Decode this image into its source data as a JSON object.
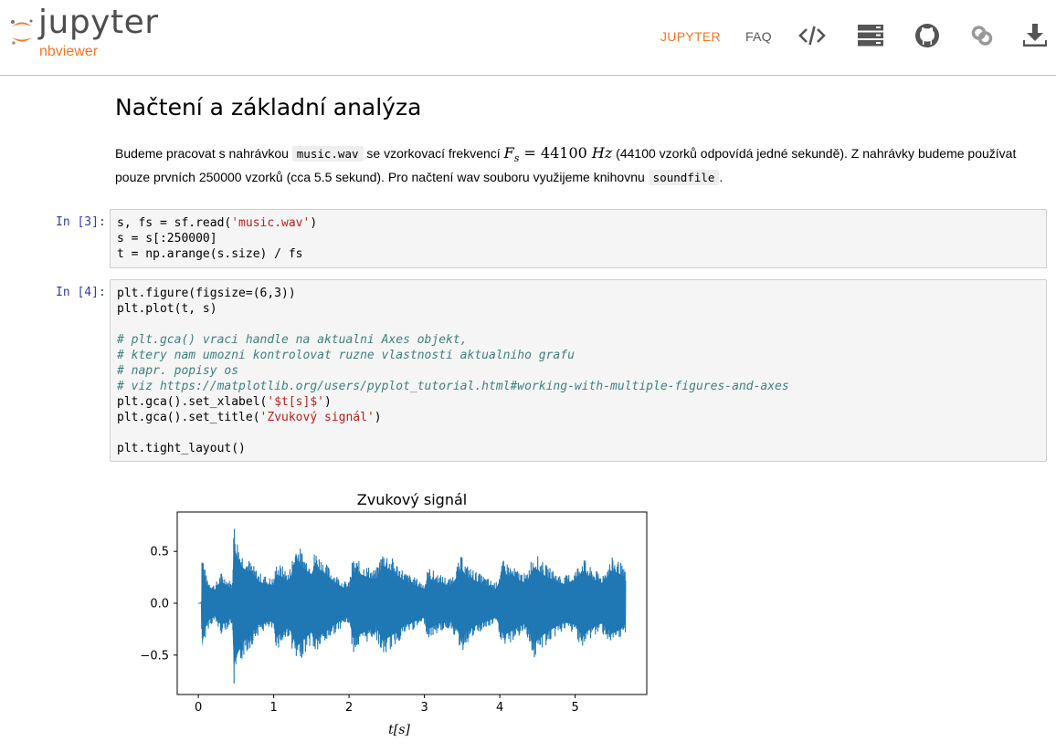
{
  "header": {
    "logo_word": "jupyter",
    "logo_sub": "nbviewer",
    "nav_jupyter": "JUPYTER",
    "nav_faq": "FAQ",
    "icons": [
      "code-icon",
      "server-icon",
      "github-icon",
      "link-icon",
      "download-icon"
    ],
    "accent": "#f37626"
  },
  "notebook": {
    "heading": "Načtení a základní analýza",
    "para": {
      "t1": "Budeme pracovat s nahrávkou ",
      "code1": "music.wav",
      "t2": " se vzorkovací frekvencí ",
      "math_var": "F",
      "math_sub": "s",
      "math_eq": " = 44100 ",
      "math_unit": "Hz",
      "t3": " (44100 vzorků odpovídá jedné sekundě). Z nahrávky budeme používat pouze prvních 250000 vzorků (cca 5.5 sekund). Pro načtení wav souboru využijeme knihovnu ",
      "code2": "soundfile",
      "t4": "."
    },
    "cell3": {
      "prompt": "In [3]:",
      "l1a": "s, fs = sf.read(",
      "l1s": "'music.wav'",
      "l1b": ")",
      "l2": "s = s[:250000]",
      "l3": "t = np.arange(s.size) / fs"
    },
    "cell4": {
      "prompt": "In [4]:",
      "l1": "plt.figure(figsize=(6,3))",
      "l2": "plt.plot(t, s)",
      "c1": "# plt.gca() vraci handle na aktualni Axes objekt,",
      "c2": "# ktery nam umozni kontrolovat ruzne vlastnosti aktualniho grafu",
      "c3": "# napr. popisy os",
      "c4": "# viz https://matplotlib.org/users/pyplot_tutorial.html#working-with-multiple-figures-and-axes",
      "l3a": "plt.gca().set_xlabel(",
      "l3s": "'$t[s]$'",
      "l3b": ")",
      "l4a": "plt.gca().set_title(",
      "l4s": "'Zvukový signál'",
      "l4b": ")",
      "l5": "plt.tight_layout()"
    }
  },
  "chart_data": {
    "type": "line",
    "title": "Zvukový signál",
    "xlabel": "t[s]",
    "ylabel": "",
    "xlim": [
      -0.28,
      5.95
    ],
    "ylim": [
      -0.88,
      0.88
    ],
    "xticks": [
      0,
      1,
      2,
      3,
      4,
      5
    ],
    "xtick_labels": [
      "0",
      "1",
      "2",
      "3",
      "4",
      "5"
    ],
    "yticks": [
      -0.5,
      0.0,
      0.5
    ],
    "ytick_labels": [
      "−0.5",
      "0.0",
      "0.5"
    ],
    "grid": false,
    "color": "#1f77b4",
    "series": [
      {
        "x": [
          0.0,
          0.04,
          0.05,
          0.07,
          0.1,
          0.15,
          0.22,
          0.3,
          0.38,
          0.45,
          0.47,
          0.52,
          0.58,
          0.7,
          0.8,
          0.95,
          1.0,
          1.04,
          1.12,
          1.2,
          1.3,
          1.4,
          1.5,
          1.55,
          1.7,
          1.8,
          1.92,
          2.0,
          2.05,
          2.2,
          2.35,
          2.45,
          2.6,
          2.75,
          2.9,
          3.0,
          3.05,
          3.2,
          3.35,
          3.5,
          3.55,
          3.7,
          3.85,
          3.95,
          4.05,
          4.2,
          4.35,
          4.45,
          4.6,
          4.75,
          4.85,
          5.0,
          5.1,
          5.2,
          5.35,
          5.5,
          5.6,
          5.67
        ],
        "upper": [
          0.0,
          0.0,
          0.54,
          0.42,
          0.28,
          0.22,
          0.18,
          0.3,
          0.25,
          0.2,
          0.8,
          0.62,
          0.5,
          0.4,
          0.3,
          0.25,
          0.25,
          0.4,
          0.36,
          0.3,
          0.6,
          0.48,
          0.4,
          0.52,
          0.38,
          0.3,
          0.22,
          0.2,
          0.44,
          0.38,
          0.32,
          0.52,
          0.42,
          0.3,
          0.24,
          0.2,
          0.35,
          0.28,
          0.24,
          0.47,
          0.38,
          0.3,
          0.24,
          0.2,
          0.42,
          0.34,
          0.28,
          0.5,
          0.38,
          0.3,
          0.26,
          0.32,
          0.45,
          0.35,
          0.28,
          0.45,
          0.4,
          0.3
        ],
        "lower": [
          0.0,
          0.0,
          -0.6,
          -0.45,
          -0.3,
          -0.22,
          -0.18,
          -0.3,
          -0.25,
          -0.2,
          -0.85,
          -0.7,
          -0.55,
          -0.42,
          -0.3,
          -0.25,
          -0.28,
          -0.45,
          -0.4,
          -0.32,
          -0.6,
          -0.5,
          -0.4,
          -0.5,
          -0.38,
          -0.3,
          -0.22,
          -0.2,
          -0.48,
          -0.4,
          -0.32,
          -0.52,
          -0.42,
          -0.3,
          -0.24,
          -0.2,
          -0.35,
          -0.28,
          -0.24,
          -0.48,
          -0.4,
          -0.3,
          -0.24,
          -0.2,
          -0.45,
          -0.35,
          -0.28,
          -0.55,
          -0.42,
          -0.32,
          -0.26,
          -0.3,
          -0.45,
          -0.35,
          -0.28,
          -0.42,
          -0.36,
          -0.28
        ]
      }
    ]
  }
}
